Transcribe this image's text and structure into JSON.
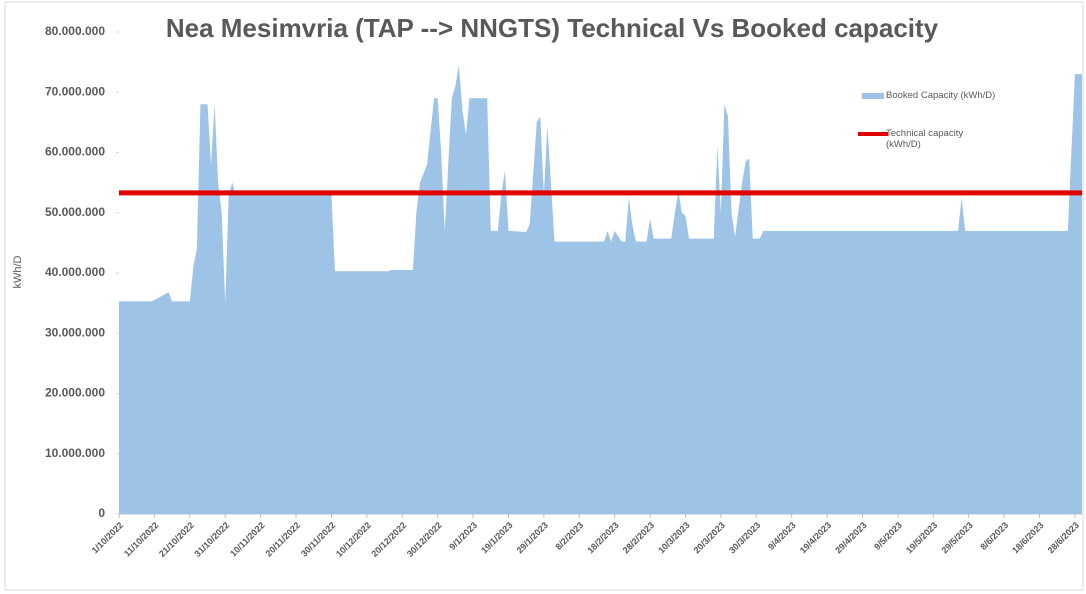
{
  "chart_data": {
    "type": "area",
    "title": "Nea Mesimvria (TAP --> NNGTS) Technical Vs Booked capacity",
    "y_label": "kWh/D",
    "xlim": [
      "1/10/2022",
      "30/6/2023"
    ],
    "xticks": [
      "1/10/2022",
      "11/10/2022",
      "21/10/2022",
      "31/10/2022",
      "10/11/2022",
      "20/11/2022",
      "30/11/2022",
      "10/12/2022",
      "20/12/2022",
      "30/12/2022",
      "9/1/2023",
      "19/1/2023",
      "29/1/2023",
      "8/2/2023",
      "18/2/2023",
      "28/2/2023",
      "10/3/2023",
      "20/3/2023",
      "30/3/2023",
      "9/4/2023",
      "19/4/2023",
      "29/4/2023",
      "9/5/2023",
      "19/5/2023",
      "29/5/2023",
      "8/6/2023",
      "18/6/2023",
      "28/6/2023"
    ],
    "ylim": [
      0,
      80000000
    ],
    "yticks": [
      0,
      {
        "value": 10000000,
        "label": "10.000.000"
      },
      {
        "value": 20000000,
        "label": "20.000.000"
      },
      {
        "value": 30000000,
        "label": "30.000.000"
      },
      {
        "value": 40000000,
        "label": "40.000.000"
      },
      {
        "value": 50000000,
        "label": "50.000.000"
      },
      {
        "value": 60000000,
        "label": "60.000.000"
      },
      {
        "value": 70000000,
        "label": "70.000.000"
      },
      {
        "value": 80000000,
        "label": "80.000.000"
      }
    ],
    "legend": "right",
    "series": [
      {
        "name": "Booked Capacity (kWh/D)",
        "type": "area",
        "color": "#9dc3e6",
        "x": [
          "1/10/2022",
          "10/10/2022",
          "11/10/2022",
          "14/10/2022",
          "15/10/2022",
          "16/10/2022",
          "21/10/2022",
          "22/10/2022",
          "23/10/2022",
          "24/10/2022",
          "26/10/2022",
          "27/10/2022",
          "28/10/2022",
          "29/10/2022",
          "30/10/2022",
          "31/10/2022",
          "1/11/2022",
          "2/11/2022",
          "3/11/2022",
          "30/11/2022",
          "1/12/2022",
          "16/12/2022",
          "17/12/2022",
          "23/12/2022",
          "24/12/2022",
          "25/12/2022",
          "27/12/2022",
          "29/12/2022",
          "30/12/2022",
          "31/12/2022",
          "1/1/2023",
          "2/1/2023",
          "3/1/2023",
          "4/1/2023",
          "5/1/2023",
          "6/1/2023",
          "7/1/2023",
          "8/1/2023",
          "13/1/2023",
          "14/1/2023",
          "16/1/2023",
          "17/1/2023",
          "18/1/2023",
          "19/1/2023",
          "24/1/2023",
          "25/1/2023",
          "27/1/2023",
          "28/1/2023",
          "29/1/2023",
          "30/1/2023",
          "1/2/2023",
          "15/2/2023",
          "16/2/2023",
          "17/2/2023",
          "18/2/2023",
          "20/2/2023",
          "21/2/2023",
          "22/2/2023",
          "23/2/2023",
          "24/2/2023",
          "27/2/2023",
          "28/2/2023",
          "1/3/2023",
          "6/3/2023",
          "7/3/2023",
          "8/3/2023",
          "9/3/2023",
          "10/3/2023",
          "11/3/2023",
          "18/3/2023",
          "19/3/2023",
          "20/3/2023",
          "21/3/2023",
          "22/3/2023",
          "23/3/2023",
          "24/3/2023",
          "26/3/2023",
          "27/3/2023",
          "28/3/2023",
          "29/3/2023",
          "31/3/2023",
          "1/4/2023",
          "26/5/2023",
          "27/5/2023",
          "28/5/2023",
          "26/6/2023",
          "27/6/2023",
          "28/6/2023",
          "30/6/2023"
        ],
        "values": [
          35300000,
          35300000,
          35500000,
          36500000,
          36800000,
          35300000,
          35300000,
          41000000,
          44000000,
          68000000,
          68000000,
          58000000,
          68000000,
          55000000,
          50000000,
          35000000,
          53000000,
          55000000,
          53000000,
          53000000,
          40300000,
          40300000,
          40500000,
          40500000,
          50000000,
          55000000,
          58000000,
          69000000,
          69000000,
          60000000,
          47000000,
          58000000,
          69000000,
          71000000,
          74500000,
          67000000,
          63000000,
          69000000,
          69000000,
          47000000,
          47000000,
          53000000,
          57000000,
          47000000,
          46800000,
          48000000,
          65000000,
          66000000,
          53000000,
          64500000,
          45200000,
          45200000,
          47000000,
          45200000,
          47000000,
          45200000,
          45200000,
          52500000,
          48000000,
          45200000,
          45200000,
          49000000,
          45700000,
          45700000,
          50000000,
          53500000,
          50000000,
          49500000,
          45700000,
          45700000,
          61000000,
          50000000,
          68000000,
          66000000,
          50000000,
          46000000,
          55000000,
          58500000,
          59000000,
          45700000,
          45700000,
          47000000,
          47000000,
          52500000,
          47000000,
          47000000,
          60000000,
          73000000,
          73000000
        ]
      },
      {
        "name": "Technical capacity (kWh/D)",
        "type": "line",
        "color": "#e00000",
        "x": [
          "1/10/2022",
          "30/6/2023"
        ],
        "values": [
          53300000,
          53300000
        ]
      }
    ]
  }
}
